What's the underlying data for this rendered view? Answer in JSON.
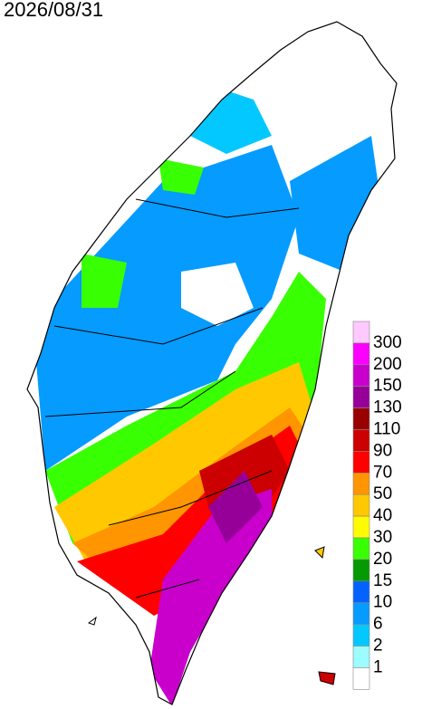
{
  "title": "2026/08/31",
  "legend": {
    "thresholds": [
      300,
      200,
      150,
      130,
      110,
      90,
      70,
      50,
      40,
      30,
      20,
      15,
      10,
      6,
      2,
      1
    ],
    "colors": [
      "#fdc9ff",
      "#fb00ff",
      "#c900cc",
      "#960099",
      "#990000",
      "#cc0000",
      "#ff0000",
      "#ff9500",
      "#ffc800",
      "#fffb03",
      "#39ff03",
      "#059902",
      "#0363ff",
      "#059bff",
      "#03c8ff",
      "#9cfcff",
      "#ffffff"
    ]
  }
}
